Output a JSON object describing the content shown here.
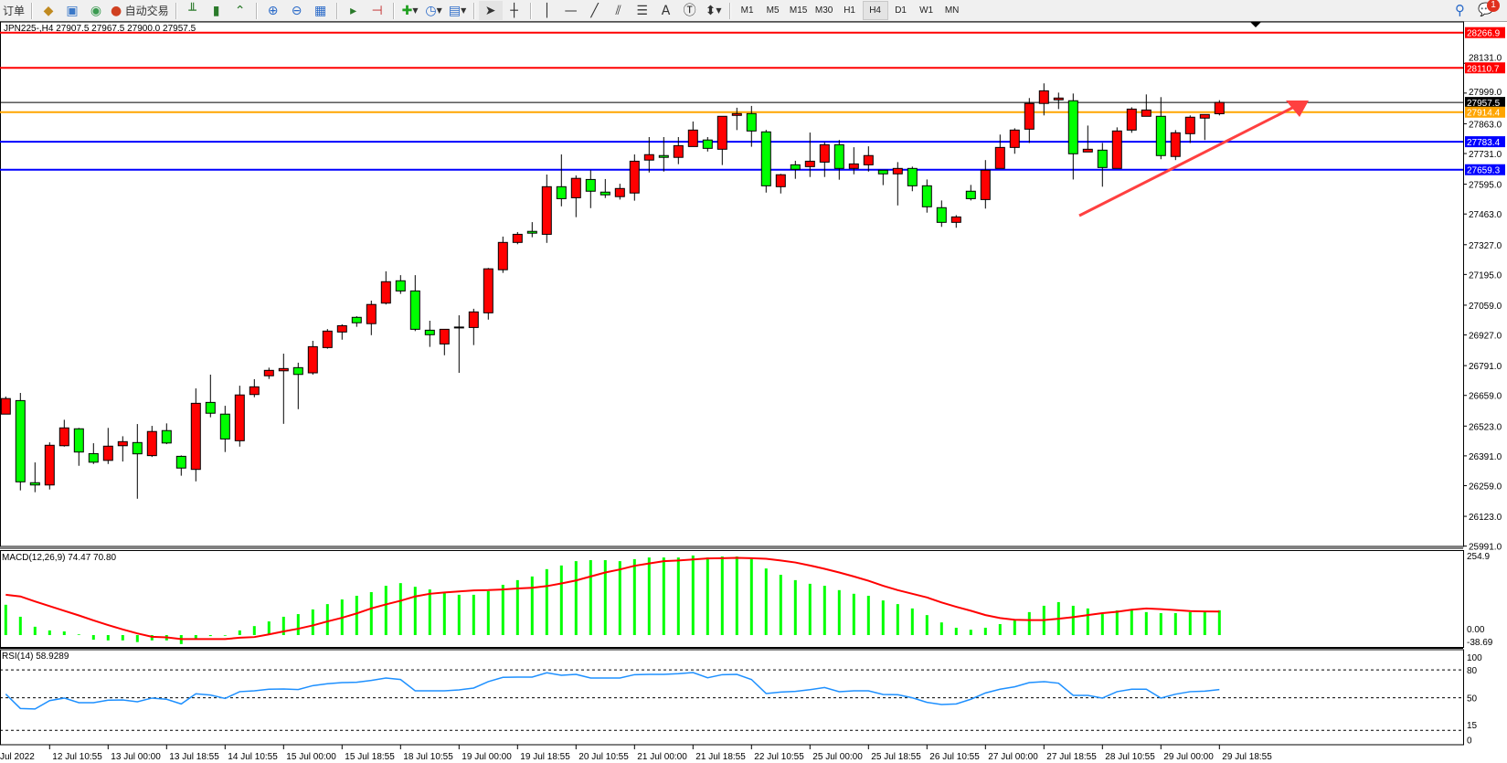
{
  "toolbar": {
    "orders_label": "订单",
    "autotrade_label": "自动交易",
    "icons": [
      "history-icon",
      "profile-icon",
      "signal-icon",
      "autotrade-icon",
      "bar-chart-icon",
      "candlestick-icon",
      "line-chart-icon",
      "zoom-in-icon",
      "zoom-out-icon",
      "tile-windows-icon",
      "auto-scroll-icon",
      "chart-shift-icon",
      "new-order-icon",
      "clock-icon",
      "template-icon",
      "cursor-icon",
      "crosshair-icon",
      "vertical-line-icon",
      "horizontal-line-icon",
      "trendline-icon",
      "equidistant-channel-icon",
      "fibonacci-icon",
      "text-icon",
      "text-label-icon",
      "arrows-icon"
    ],
    "timeframes": [
      "M1",
      "M5",
      "M15",
      "M30",
      "H1",
      "H4",
      "D1",
      "W1",
      "MN"
    ],
    "active_timeframe": "H4",
    "notifications_count": "1"
  },
  "chart": {
    "title": "JPN225-,H4  27907.5 27967.5 27900.0 27957.5",
    "bull_color": "#ff0000",
    "bear_color": "#00ff00",
    "price_axis": [
      "28131.0",
      "27999.0",
      "27863.0",
      "27731.0",
      "27595.0",
      "27463.0",
      "27327.0",
      "27195.0",
      "27059.0",
      "26927.0",
      "26791.0",
      "26659.0",
      "26523.0",
      "26391.0",
      "26259.0",
      "26123.0",
      "25991.0"
    ],
    "levels": [
      {
        "price": 28266.9,
        "label": "28266.9",
        "color": "#ff0000"
      },
      {
        "price": 28110.7,
        "label": "28110.7",
        "color": "#ff0000"
      },
      {
        "price": 27957.5,
        "label": "27957.5",
        "color": "#000000"
      },
      {
        "price": 27914.4,
        "label": "27914.4",
        "color": "#ffa500"
      },
      {
        "price": 27783.4,
        "label": "27783.4",
        "color": "#0000ff"
      },
      {
        "price": 27659.3,
        "label": "27659.3",
        "color": "#0000ff"
      }
    ],
    "candles_ohlc": [
      [
        26576,
        26654,
        26576,
        26645
      ],
      [
        26636,
        26670,
        26238,
        26276
      ],
      [
        26272,
        26362,
        26230,
        26262
      ],
      [
        26262,
        26451,
        26242,
        26438
      ],
      [
        26436,
        26551,
        26432,
        26515
      ],
      [
        26511,
        26515,
        26347,
        26408
      ],
      [
        26401,
        26447,
        26355,
        26363
      ],
      [
        26371,
        26515,
        26355,
        26434
      ],
      [
        26436,
        26478,
        26366,
        26454
      ],
      [
        26450,
        26532,
        26201,
        26400
      ],
      [
        26392,
        26524,
        26386,
        26499
      ],
      [
        26503,
        26535,
        26443,
        26448
      ],
      [
        26389,
        26393,
        26303,
        26337
      ],
      [
        26331,
        26690,
        26278,
        26624
      ],
      [
        26628,
        26751,
        26562,
        26580
      ],
      [
        26576,
        26613,
        26408,
        26466
      ],
      [
        26458,
        26702,
        26432,
        26661
      ],
      [
        26663,
        26731,
        26651,
        26697
      ],
      [
        26746,
        26782,
        26732,
        26770
      ],
      [
        26768,
        26844,
        26533,
        26778
      ],
      [
        26782,
        26804,
        26598,
        26752
      ],
      [
        26759,
        26901,
        26751,
        26875
      ],
      [
        26871,
        26953,
        26866,
        26944
      ],
      [
        26940,
        26974,
        26906,
        26968
      ],
      [
        27005,
        27010,
        26963,
        26981
      ],
      [
        26977,
        27079,
        26926,
        27062
      ],
      [
        27068,
        27209,
        27062,
        27163
      ],
      [
        27167,
        27192,
        27109,
        27122
      ],
      [
        27122,
        27192,
        26944,
        26952
      ],
      [
        26948,
        26990,
        26874,
        26928
      ],
      [
        26887,
        26952,
        26837,
        26952
      ],
      [
        26962,
        27014,
        26759,
        26962
      ],
      [
        26960,
        27043,
        26882,
        27029
      ],
      [
        27025,
        27224,
        26995,
        27220
      ],
      [
        27216,
        27363,
        27202,
        27337
      ],
      [
        27337,
        27383,
        27329,
        27373
      ],
      [
        27386,
        27427,
        27360,
        27378
      ],
      [
        27373,
        27638,
        27335,
        27584
      ],
      [
        27584,
        27727,
        27497,
        27531
      ],
      [
        27535,
        27634,
        27449,
        27621
      ],
      [
        27616,
        27657,
        27489,
        27564
      ],
      [
        27560,
        27618,
        27534,
        27548
      ],
      [
        27540,
        27597,
        27527,
        27576
      ],
      [
        27556,
        27727,
        27522,
        27697
      ],
      [
        27702,
        27804,
        27647,
        27726
      ],
      [
        27722,
        27804,
        27651,
        27714
      ],
      [
        27714,
        27804,
        27684,
        27766
      ],
      [
        27762,
        27873,
        27762,
        27835
      ],
      [
        27791,
        27804,
        27740,
        27754
      ],
      [
        27750,
        27896,
        27680,
        27896
      ],
      [
        27900,
        27934,
        27835,
        27908
      ],
      [
        27908,
        27942,
        27761,
        27831
      ],
      [
        27827,
        27836,
        27558,
        27588
      ],
      [
        27584,
        27641,
        27554,
        27637
      ],
      [
        27681,
        27699,
        27619,
        27661
      ],
      [
        27673,
        27824,
        27627,
        27697
      ],
      [
        27693,
        27781,
        27627,
        27770
      ],
      [
        27770,
        27791,
        27615,
        27665
      ],
      [
        27665,
        27759,
        27639,
        27685
      ],
      [
        27681,
        27763,
        27651,
        27722
      ],
      [
        27657,
        27657,
        27591,
        27641
      ],
      [
        27641,
        27693,
        27501,
        27665
      ],
      [
        27665,
        27673,
        27564,
        27588
      ],
      [
        27588,
        27616,
        27469,
        27495
      ],
      [
        27491,
        27523,
        27406,
        27426
      ],
      [
        27426,
        27458,
        27402,
        27450
      ],
      [
        27564,
        27592,
        27523,
        27531
      ],
      [
        27527,
        27702,
        27487,
        27657
      ],
      [
        27665,
        27815,
        27665,
        27758
      ],
      [
        27758,
        27843,
        27730,
        27835
      ],
      [
        27839,
        27977,
        27778,
        27953
      ],
      [
        27953,
        28042,
        27900,
        28009
      ],
      [
        27969,
        28001,
        27928,
        27977
      ],
      [
        27965,
        27997,
        27616,
        27730
      ],
      [
        27738,
        27855,
        27738,
        27750
      ],
      [
        27746,
        27778,
        27584,
        27669
      ],
      [
        27665,
        27847,
        27665,
        27831
      ],
      [
        27835,
        27936,
        27823,
        27928
      ],
      [
        27896,
        27993,
        27896,
        27924
      ],
      [
        27896,
        27981,
        27706,
        27722
      ],
      [
        27718,
        27835,
        27702,
        27823
      ],
      [
        27819,
        27900,
        27778,
        27892
      ],
      [
        27888,
        27904,
        27791,
        27904
      ],
      [
        27907.5,
        27967.5,
        27900.0,
        27957.5
      ]
    ],
    "date_labels": [
      {
        "i": 0,
        "t": "Jul 2022"
      },
      {
        "i": 3,
        "t": "12 Jul 10:55"
      },
      {
        "i": 7,
        "t": "13 Jul 00:00"
      },
      {
        "i": 11,
        "t": "13 Jul 18:55"
      },
      {
        "i": 15,
        "t": "14 Jul 10:55"
      },
      {
        "i": 19,
        "t": "15 Jul 00:00"
      },
      {
        "i": 23,
        "t": "15 Jul 18:55"
      },
      {
        "i": 27,
        "t": "18 Jul 10:55"
      },
      {
        "i": 31,
        "t": "19 Jul 00:00"
      },
      {
        "i": 35,
        "t": "19 Jul 18:55"
      },
      {
        "i": 39,
        "t": "20 Jul 10:55"
      },
      {
        "i": 43,
        "t": "21 Jul 00:00"
      },
      {
        "i": 47,
        "t": "21 Jul 18:55"
      },
      {
        "i": 51,
        "t": "22 Jul 10:55"
      },
      {
        "i": 55,
        "t": "25 Jul 00:00"
      },
      {
        "i": 59,
        "t": "25 Jul 18:55"
      },
      {
        "i": 63,
        "t": "26 Jul 10:55"
      },
      {
        "i": 67,
        "t": "27 Jul 00:00"
      },
      {
        "i": 71,
        "t": "27 Jul 18:55"
      },
      {
        "i": 75,
        "t": "28 Jul 10:55"
      },
      {
        "i": 79,
        "t": "29 Jul 00:00"
      },
      {
        "i": 83,
        "t": "29 Jul 18:55"
      }
    ],
    "arrow_color": "#ff4040"
  },
  "macd": {
    "title": "MACD(12,26,9) 74.47 70.80",
    "axis_top": "254.9",
    "axis_zero": "0.00",
    "axis_bottom": "-38.69",
    "histogram_color": "#00ff00",
    "signal_color": "#ff0000",
    "histogram": [
      91,
      55,
      25,
      14,
      11,
      2,
      -14,
      -16,
      -16,
      -21,
      -16,
      -16,
      -27,
      -12,
      -3,
      -2,
      14,
      27,
      41,
      55,
      63,
      77,
      93,
      107,
      118,
      129,
      148,
      156,
      145,
      137,
      126,
      121,
      121,
      132,
      151,
      165,
      176,
      198,
      209,
      222,
      225,
      225,
      222,
      228,
      233,
      233,
      233,
      239,
      233,
      236,
      236,
      228,
      200,
      181,
      165,
      154,
      148,
      135,
      124,
      118,
      104,
      93,
      80,
      60,
      38,
      22,
      16,
      22,
      33,
      44,
      69,
      88,
      99,
      88,
      80,
      63,
      74,
      77,
      69,
      66,
      66,
      69,
      71,
      74.47
    ],
    "signal": [
      121,
      116,
      101,
      87,
      73,
      59,
      44,
      30,
      17,
      5,
      -5,
      -7,
      -12,
      -12,
      -12,
      -12,
      -8,
      -6,
      2,
      11,
      19,
      29,
      41,
      52,
      65,
      80,
      92,
      103,
      116,
      124,
      128,
      131,
      134,
      135,
      137,
      140,
      142,
      147,
      155,
      164,
      176,
      188,
      197,
      208,
      215,
      222,
      224,
      227,
      230,
      231,
      232,
      231,
      229,
      224,
      218,
      209,
      199,
      188,
      176,
      163,
      148,
      135,
      124,
      113,
      98,
      85,
      73,
      60,
      51,
      46,
      45,
      45,
      49,
      54,
      60,
      66,
      70,
      76,
      80,
      78,
      75,
      72,
      71,
      70.8
    ]
  },
  "rsi": {
    "title": "RSI(14) 58.9289",
    "levels": [
      "100",
      "80",
      "50",
      "15",
      "0"
    ],
    "line_color": "#1e90ff",
    "values": [
      54,
      38.5,
      38,
      47,
      49.7,
      44.8,
      44.8,
      47.4,
      47.7,
      45.7,
      49.7,
      48.4,
      43.4,
      54.3,
      53,
      49.3,
      56.6,
      57.5,
      59.2,
      59.5,
      58.9,
      63.1,
      65.1,
      66.4,
      66.7,
      68.7,
      71.3,
      69.7,
      57.5,
      57.5,
      57.5,
      58.5,
      60.5,
      67.4,
      72,
      72.3,
      72.3,
      76.9,
      74.3,
      75.2,
      71.3,
      71.3,
      71.3,
      74.9,
      75.2,
      75.2,
      75.9,
      77.2,
      71.6,
      74.9,
      75.2,
      69.7,
      54.6,
      56.2,
      56.9,
      58.7,
      61.1,
      56.6,
      57.5,
      57.5,
      53.6,
      53.3,
      50,
      45.1,
      42.8,
      43.4,
      48.4,
      55.2,
      59.2,
      61.8,
      66.4,
      67.4,
      65.7,
      52.6,
      52.6,
      49.7,
      56.6,
      59.2,
      59.2,
      49.7,
      53.9,
      56.6,
      57.2,
      58.9289
    ]
  }
}
